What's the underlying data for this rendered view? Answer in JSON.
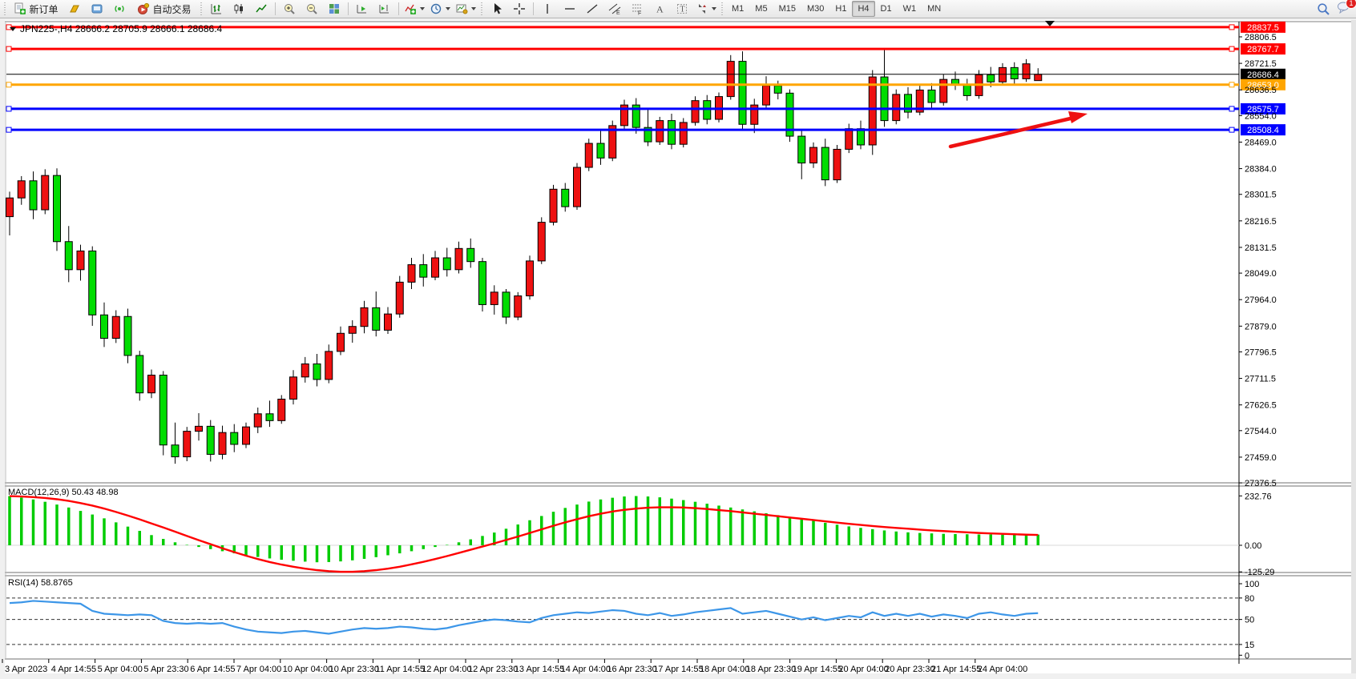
{
  "toolbar": {
    "new_order": "新订单",
    "autotrading": "自动交易",
    "timeframes": [
      "M1",
      "M5",
      "M15",
      "M30",
      "H1",
      "H4",
      "D1",
      "W1",
      "MN"
    ],
    "active_timeframe": "H4",
    "notification_badge": "1"
  },
  "chart": {
    "title": "JPN225-,H4  28666.2 28705.9 28666.1 28686.4",
    "symbol": "JPN225-",
    "period": "H4"
  },
  "chart_data": {
    "type": "candlestick",
    "symbol": "JPN225-",
    "timeframe": "H4",
    "current": {
      "open": 28666.2,
      "high": 28705.9,
      "low": 28666.1,
      "close": 28686.4
    },
    "candle_up_color": "#ee1111",
    "candle_down_color": "#00dd00",
    "price_axis_ticks": [
      28806.5,
      28721.5,
      28636.5,
      28554.0,
      28469.0,
      28384.0,
      28301.5,
      28216.5,
      28131.5,
      28049.0,
      27964.0,
      27879.0,
      27796.5,
      27711.5,
      27626.5,
      27544.0,
      27459.0,
      27376.5
    ],
    "time_labels": [
      "3 Apr 2023",
      "4 Apr 14:55",
      "5 Apr 04:00",
      "5 Apr 23:30",
      "6 Apr 14:55",
      "7 Apr 04:00",
      "10 Apr 04:00",
      "10 Apr 23:30",
      "11 Apr 14:55",
      "12 Apr 04:00",
      "12 Apr 23:30",
      "13 Apr 14:55",
      "14 Apr 04:00",
      "16 Apr 23:30",
      "17 Apr 14:55",
      "18 Apr 04:00",
      "18 Apr 23:30",
      "19 Apr 14:55",
      "20 Apr 04:00",
      "20 Apr 23:30",
      "21 Apr 14:55",
      "24 Apr 04:00"
    ],
    "levels": [
      {
        "name": "resistance-line-1",
        "label": "28837.5",
        "price": 28837.5,
        "color": "#ff0000",
        "width": 3,
        "current": false
      },
      {
        "name": "resistance-line-2",
        "label": "28767.7",
        "price": 28767.7,
        "color": "#ff0000",
        "width": 3,
        "current": false
      },
      {
        "name": "current-price-line",
        "label": "28686.4",
        "price": 28686.4,
        "color": "#000000",
        "width": 1,
        "current": true
      },
      {
        "name": "pivot-line",
        "label": "28653.0",
        "price": 28653.0,
        "color": "#ffa500",
        "width": 3,
        "current": false
      },
      {
        "name": "support-line-1",
        "label": "28575.7",
        "price": 28575.7,
        "color": "#0000ff",
        "width": 3,
        "current": false
      },
      {
        "name": "support-line-2",
        "label": "28508.4",
        "price": 28508.4,
        "color": "#0000ff",
        "width": 3,
        "current": false
      }
    ],
    "candles": [
      [
        28230,
        28310,
        28170,
        28290
      ],
      [
        28290,
        28360,
        28268,
        28345
      ],
      [
        28345,
        28375,
        28222,
        28252
      ],
      [
        28252,
        28382,
        28238,
        28362
      ],
      [
        28362,
        28385,
        28120,
        28150
      ],
      [
        28150,
        28200,
        28020,
        28060
      ],
      [
        28060,
        28140,
        28025,
        28120
      ],
      [
        28120,
        28135,
        27880,
        27915
      ],
      [
        27915,
        27955,
        27812,
        27840
      ],
      [
        27840,
        27930,
        27825,
        27910
      ],
      [
        27910,
        27935,
        27760,
        27785
      ],
      [
        27785,
        27800,
        27640,
        27665
      ],
      [
        27665,
        27740,
        27648,
        27722
      ],
      [
        27722,
        27735,
        27465,
        27498
      ],
      [
        27498,
        27570,
        27438,
        27460
      ],
      [
        27460,
        27556,
        27446,
        27542
      ],
      [
        27542,
        27600,
        27512,
        27558
      ],
      [
        27558,
        27578,
        27445,
        27468
      ],
      [
        27468,
        27560,
        27452,
        27538
      ],
      [
        27538,
        27565,
        27475,
        27500
      ],
      [
        27500,
        27570,
        27488,
        27556
      ],
      [
        27556,
        27618,
        27536,
        27598
      ],
      [
        27598,
        27640,
        27556,
        27576
      ],
      [
        27576,
        27658,
        27566,
        27645
      ],
      [
        27645,
        27738,
        27628,
        27716
      ],
      [
        27716,
        27780,
        27698,
        27758
      ],
      [
        27758,
        27790,
        27686,
        27708
      ],
      [
        27708,
        27820,
        27696,
        27798
      ],
      [
        27798,
        27878,
        27786,
        27856
      ],
      [
        27856,
        27898,
        27826,
        27878
      ],
      [
        27878,
        27960,
        27856,
        27938
      ],
      [
        27938,
        27990,
        27846,
        27866
      ],
      [
        27866,
        27940,
        27854,
        27918
      ],
      [
        27918,
        28040,
        27906,
        28020
      ],
      [
        28020,
        28098,
        27998,
        28076
      ],
      [
        28076,
        28110,
        28006,
        28036
      ],
      [
        28036,
        28120,
        28026,
        28098
      ],
      [
        28098,
        28130,
        28038,
        28060
      ],
      [
        28060,
        28150,
        28048,
        28128
      ],
      [
        28128,
        28160,
        28066,
        28086
      ],
      [
        28086,
        28098,
        27926,
        27948
      ],
      [
        27948,
        28010,
        27916,
        27988
      ],
      [
        27988,
        27998,
        27886,
        27908
      ],
      [
        27908,
        27988,
        27898,
        27976
      ],
      [
        27976,
        28105,
        27964,
        28088
      ],
      [
        28088,
        28228,
        28078,
        28212
      ],
      [
        28212,
        28332,
        28202,
        28318
      ],
      [
        28318,
        28338,
        28246,
        28262
      ],
      [
        28262,
        28402,
        28252,
        28388
      ],
      [
        28388,
        28480,
        28376,
        28465
      ],
      [
        28465,
        28508,
        28396,
        28418
      ],
      [
        28418,
        28538,
        28408,
        28522
      ],
      [
        28522,
        28605,
        28510,
        28588
      ],
      [
        28588,
        28610,
        28496,
        28516
      ],
      [
        28516,
        28578,
        28456,
        28470
      ],
      [
        28470,
        28550,
        28460,
        28538
      ],
      [
        28538,
        28560,
        28446,
        28462
      ],
      [
        28462,
        28546,
        28452,
        28532
      ],
      [
        28532,
        28616,
        28522,
        28602
      ],
      [
        28602,
        28620,
        28526,
        28542
      ],
      [
        28542,
        28628,
        28532,
        28615
      ],
      [
        28615,
        28748,
        28605,
        28728
      ],
      [
        28728,
        28760,
        28510,
        28526
      ],
      [
        28526,
        28608,
        28498,
        28588
      ],
      [
        28588,
        28680,
        28576,
        28650
      ],
      [
        28650,
        28666,
        28606,
        28626
      ],
      [
        28626,
        28638,
        28470,
        28488
      ],
      [
        28488,
        28510,
        28350,
        28402
      ],
      [
        28402,
        28468,
        28386,
        28452
      ],
      [
        28452,
        28480,
        28328,
        28348
      ],
      [
        28348,
        28460,
        28338,
        28446
      ],
      [
        28446,
        28528,
        28434,
        28512
      ],
      [
        28512,
        28538,
        28446,
        28460
      ],
      [
        28460,
        28700,
        28428,
        28678
      ],
      [
        28678,
        28768,
        28518,
        28538
      ],
      [
        28538,
        28638,
        28526,
        28622
      ],
      [
        28622,
        28645,
        28545,
        28565
      ],
      [
        28565,
        28650,
        28555,
        28636
      ],
      [
        28636,
        28658,
        28576,
        28596
      ],
      [
        28596,
        28686,
        28586,
        28670
      ],
      [
        28670,
        28695,
        28636,
        28652
      ],
      [
        28652,
        28672,
        28602,
        28618
      ],
      [
        28618,
        28700,
        28608,
        28685
      ],
      [
        28685,
        28710,
        28645,
        28662
      ],
      [
        28662,
        28722,
        28652,
        28708
      ],
      [
        28708,
        28725,
        28655,
        28672
      ],
      [
        28672,
        28735,
        28662,
        28720
      ],
      [
        28666.2,
        28705.9,
        28666.1,
        28686.4
      ]
    ],
    "macd": {
      "label": "MACD(12,26,9) 50.43 48.98",
      "params": "12,26,9",
      "main_value": 50.43,
      "signal_value": 48.98,
      "axis": [
        "232.76",
        "0.00",
        "-125.29"
      ],
      "hist_color": "#00cc00",
      "signal_color": "#ff0000",
      "histogram": [
        232,
        225,
        216,
        205,
        192,
        178,
        162,
        145,
        127,
        108,
        88,
        68,
        48,
        30,
        14,
        2,
        -8,
        -18,
        -28,
        -38,
        -47,
        -55,
        -62,
        -68,
        -73,
        -77,
        -80,
        -79,
        -76,
        -71,
        -64,
        -56,
        -47,
        -38,
        -28,
        -18,
        -8,
        2,
        14,
        28,
        44,
        60,
        78,
        98,
        118,
        138,
        158,
        176,
        192,
        206,
        216,
        224,
        230,
        232,
        230,
        226,
        220,
        213,
        205,
        196,
        187,
        178,
        169,
        160,
        151,
        142,
        133,
        124,
        115,
        106,
        97,
        89,
        82,
        76,
        70,
        65,
        61,
        58,
        56,
        54,
        53,
        52,
        51,
        51,
        50,
        50,
        50,
        50.43
      ],
      "signal": [
        232,
        230,
        227,
        223,
        217,
        209,
        199,
        187,
        173,
        157,
        140,
        122,
        103,
        84,
        64,
        44,
        24,
        5,
        -14,
        -32,
        -49,
        -65,
        -79,
        -91,
        -101,
        -110,
        -117,
        -122,
        -125,
        -125,
        -122,
        -117,
        -110,
        -101,
        -90,
        -78,
        -65,
        -51,
        -36,
        -21,
        -6,
        9,
        25,
        41,
        58,
        75,
        92,
        108,
        123,
        137,
        149,
        159,
        167,
        173,
        177,
        179,
        179,
        178,
        175,
        171,
        166,
        161,
        155,
        149,
        143,
        137,
        131,
        125,
        119,
        113,
        107,
        101,
        96,
        91,
        86,
        82,
        78,
        74,
        70,
        67,
        64,
        61,
        58,
        56,
        54,
        52,
        50,
        48.98
      ]
    },
    "rsi": {
      "label": "RSI(14) 58.8765",
      "period": 14,
      "value": 58.8765,
      "axis": [
        100,
        80,
        50,
        15,
        0
      ],
      "dashed_levels": [
        80,
        50,
        15
      ],
      "color": "#3c96e8",
      "values": [
        73,
        74,
        76,
        75,
        74,
        73,
        72,
        62,
        58,
        57,
        56,
        57,
        56,
        48,
        45,
        44,
        45,
        44,
        45,
        40,
        36,
        33,
        32,
        31,
        33,
        34,
        32,
        30,
        33,
        36,
        38,
        37,
        38,
        40,
        39,
        37,
        36,
        38,
        42,
        45,
        48,
        50,
        49,
        47,
        46,
        52,
        56,
        58,
        60,
        59,
        61,
        63,
        62,
        58,
        56,
        59,
        55,
        57,
        60,
        62,
        64,
        66,
        58,
        60,
        62,
        58,
        54,
        50,
        53,
        49,
        52,
        55,
        53,
        60,
        55,
        58,
        55,
        58,
        54,
        57,
        55,
        52,
        58,
        60,
        57,
        55,
        58,
        58.88
      ]
    },
    "annotation_arrow": {
      "color": "#ee1111",
      "from_price": 28395,
      "to_price": 28500,
      "note": "red up arrow pointing to support zone"
    }
  }
}
